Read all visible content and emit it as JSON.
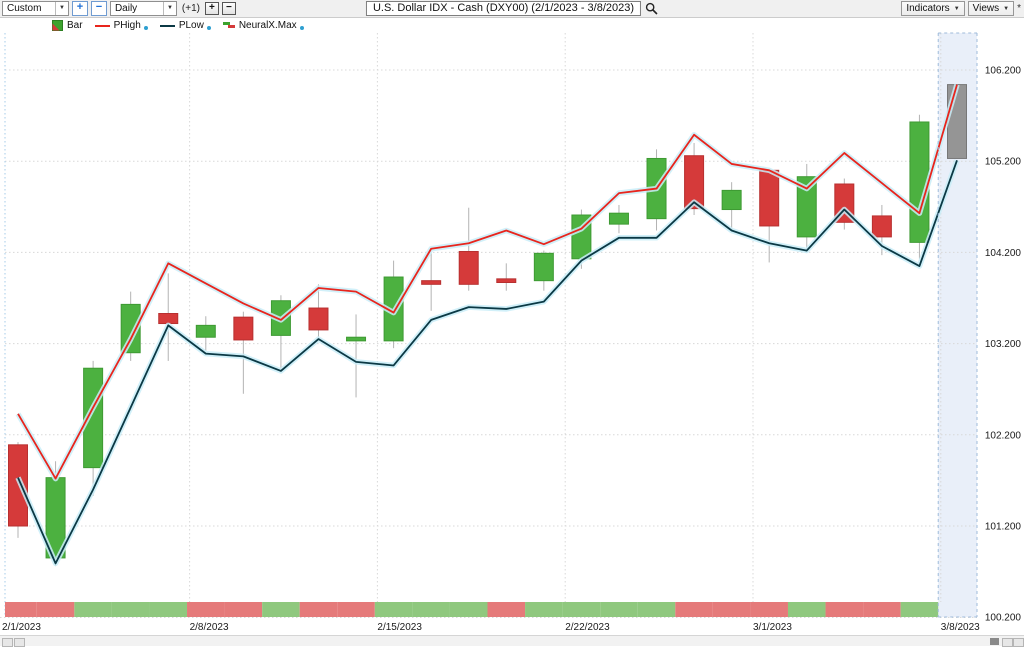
{
  "toolbar": {
    "period_dropdown": "Custom",
    "zoom_in_label": "+",
    "zoom_out_label": "−",
    "interval_dropdown": "Daily",
    "offset_label": "(+1)",
    "bar_plus_label": "+",
    "bar_minus_label": "−",
    "symbol_title": "U.S. Dollar IDX - Cash (DXY00) (2/1/2023 - 3/8/2023)",
    "indicators_button": "Indicators",
    "views_button": "Views",
    "modified_marker": "*"
  },
  "legend": {
    "bar_label": "Bar",
    "phigh_label": "PHigh",
    "plow_label": "PLow",
    "neuralx_label": "NeuralX.Max"
  },
  "chart_data": {
    "type": "candlestick",
    "title": "U.S. Dollar IDX - Cash (DXY00)",
    "date_range": "2/1/2023 - 3/8/2023",
    "interval": "Daily",
    "grid": true,
    "legend_position": "top-left",
    "yaxis_side": "right",
    "ylim": [
      100.2,
      106.6
    ],
    "yticks": [
      {
        "value": 106.2,
        "label": "106.200"
      },
      {
        "value": 105.2,
        "label": "105.200"
      },
      {
        "value": 104.2,
        "label": "104.200"
      },
      {
        "value": 103.2,
        "label": "103.200"
      },
      {
        "value": 102.2,
        "label": "102.200"
      },
      {
        "value": 101.2,
        "label": "101.200"
      },
      {
        "value": 100.2,
        "label": "100.200"
      }
    ],
    "xticks": [
      {
        "index": 0,
        "label": "2/1/2023"
      },
      {
        "index": 5,
        "label": "2/8/2023"
      },
      {
        "index": 10,
        "label": "2/15/2023"
      },
      {
        "index": 15,
        "label": "2/22/2023"
      },
      {
        "index": 20,
        "label": "3/1/2023"
      },
      {
        "index": 25,
        "label": "3/8/2023"
      }
    ],
    "dates": [
      "2/1/2023",
      "2/2/2023",
      "2/3/2023",
      "2/6/2023",
      "2/7/2023",
      "2/8/2023",
      "2/9/2023",
      "2/10/2023",
      "2/13/2023",
      "2/14/2023",
      "2/15/2023",
      "2/16/2023",
      "2/17/2023",
      "2/20/2023",
      "2/21/2023",
      "2/22/2023",
      "2/23/2023",
      "2/24/2023",
      "2/27/2023",
      "2/28/2023",
      "3/1/2023",
      "3/2/2023",
      "3/3/2023",
      "3/6/2023",
      "3/7/2023",
      "3/8/2023"
    ],
    "candles": [
      {
        "date": "2/1/2023",
        "o": 102.09,
        "h": 102.12,
        "l": 101.07,
        "c": 101.2,
        "color": "red"
      },
      {
        "date": "2/2/2023",
        "o": 100.85,
        "h": 101.91,
        "l": 100.76,
        "c": 101.73,
        "color": "green"
      },
      {
        "date": "2/3/2023",
        "o": 101.84,
        "h": 103.01,
        "l": 101.53,
        "c": 102.93,
        "color": "green"
      },
      {
        "date": "2/6/2023",
        "o": 103.1,
        "h": 103.77,
        "l": 103.01,
        "c": 103.63,
        "color": "green"
      },
      {
        "date": "2/7/2023",
        "o": 103.53,
        "h": 103.97,
        "l": 103.01,
        "c": 103.42,
        "color": "red"
      },
      {
        "date": "2/8/2023",
        "o": 103.27,
        "h": 103.5,
        "l": 103.12,
        "c": 103.4,
        "color": "green"
      },
      {
        "date": "2/9/2023",
        "o": 103.49,
        "h": 103.55,
        "l": 102.65,
        "c": 103.24,
        "color": "red"
      },
      {
        "date": "2/10/2023",
        "o": 103.29,
        "h": 103.73,
        "l": 102.9,
        "c": 103.67,
        "color": "green"
      },
      {
        "date": "2/13/2023",
        "o": 103.59,
        "h": 103.85,
        "l": 103.23,
        "c": 103.35,
        "color": "red"
      },
      {
        "date": "2/14/2023",
        "o": 103.23,
        "h": 103.52,
        "l": 102.61,
        "c": 103.27,
        "color": "green"
      },
      {
        "date": "2/15/2023",
        "o": 103.23,
        "h": 104.11,
        "l": 103.15,
        "c": 103.93,
        "color": "green"
      },
      {
        "date": "2/16/2023",
        "o": 103.89,
        "h": 104.2,
        "l": 103.56,
        "c": 103.85,
        "color": "red"
      },
      {
        "date": "2/17/2023",
        "o": 104.21,
        "h": 104.69,
        "l": 103.78,
        "c": 103.85,
        "color": "red"
      },
      {
        "date": "2/20/2023",
        "o": 103.91,
        "h": 104.08,
        "l": 103.78,
        "c": 103.87,
        "color": "red"
      },
      {
        "date": "2/21/2023",
        "o": 103.89,
        "h": 104.22,
        "l": 103.78,
        "c": 104.19,
        "color": "green"
      },
      {
        "date": "2/22/2023",
        "o": 104.13,
        "h": 104.67,
        "l": 104.02,
        "c": 104.61,
        "color": "green"
      },
      {
        "date": "2/23/2023",
        "o": 104.51,
        "h": 104.72,
        "l": 104.41,
        "c": 104.63,
        "color": "green"
      },
      {
        "date": "2/24/2023",
        "o": 104.57,
        "h": 105.33,
        "l": 104.44,
        "c": 105.23,
        "color": "green"
      },
      {
        "date": "2/27/2023",
        "o": 105.26,
        "h": 105.4,
        "l": 104.61,
        "c": 104.68,
        "color": "red"
      },
      {
        "date": "2/28/2023",
        "o": 104.67,
        "h": 104.97,
        "l": 104.44,
        "c": 104.88,
        "color": "green"
      },
      {
        "date": "3/1/2023",
        "o": 105.1,
        "h": 105.11,
        "l": 104.09,
        "c": 104.49,
        "color": "red"
      },
      {
        "date": "3/2/2023",
        "o": 104.37,
        "h": 105.17,
        "l": 104.2,
        "c": 105.03,
        "color": "green"
      },
      {
        "date": "3/3/2023",
        "o": 104.95,
        "h": 105.01,
        "l": 104.45,
        "c": 104.53,
        "color": "red"
      },
      {
        "date": "3/6/2023",
        "o": 104.6,
        "h": 104.72,
        "l": 104.17,
        "c": 104.37,
        "color": "red"
      },
      {
        "date": "3/7/2023",
        "o": 104.31,
        "h": 105.71,
        "l": 104.13,
        "c": 105.63,
        "color": "green"
      },
      {
        "date": "3/8/2023",
        "o": 105.23,
        "h": 106.04,
        "l": 105.23,
        "c": 106.04,
        "color": "gray"
      }
    ],
    "series": [
      {
        "name": "PHigh",
        "color": "#e8251d",
        "values": [
          102.43,
          101.72,
          102.5,
          103.25,
          104.08,
          103.86,
          103.64,
          103.46,
          103.81,
          103.77,
          103.54,
          104.24,
          104.3,
          104.44,
          104.29,
          104.46,
          104.85,
          104.9,
          105.49,
          105.17,
          105.1,
          104.9,
          105.29,
          104.96,
          104.63,
          106.04
        ]
      },
      {
        "name": "PLow",
        "color": "#0b3945",
        "values": [
          101.73,
          100.79,
          101.6,
          102.5,
          103.4,
          103.09,
          103.06,
          102.9,
          103.25,
          103.0,
          102.96,
          103.46,
          103.6,
          103.58,
          103.66,
          104.11,
          104.36,
          104.36,
          104.75,
          104.44,
          104.3,
          104.22,
          104.67,
          104.27,
          104.05,
          105.21
        ]
      }
    ],
    "neuralx_max": [
      "red",
      "red",
      "green",
      "green",
      "green",
      "red",
      "red",
      "green",
      "red",
      "red",
      "green",
      "green",
      "green",
      "red",
      "green",
      "green",
      "green",
      "green",
      "red",
      "red",
      "red",
      "green",
      "red",
      "red",
      "green",
      null
    ],
    "last_bar_highlighted": true,
    "colors": {
      "candle_up": "#4cb140",
      "candle_up_border": "#3e9a33",
      "candle_down": "#d53a3a",
      "candle_down_border": "#b83030",
      "candle_current": "#959595",
      "candle_current_border": "#777777",
      "wick": "#b3b3b3",
      "phigh_line": "#e8251d",
      "plow_line": "#0b3945",
      "line_glow": "#c9edf8",
      "strip_up": "#8fc87e",
      "strip_down": "#e57a7a",
      "highlight_fill": "#e9eff9",
      "highlight_border": "#9fbbda",
      "grid": "#d8d8d8",
      "plot_left_edge": "#a5cbe8"
    }
  }
}
